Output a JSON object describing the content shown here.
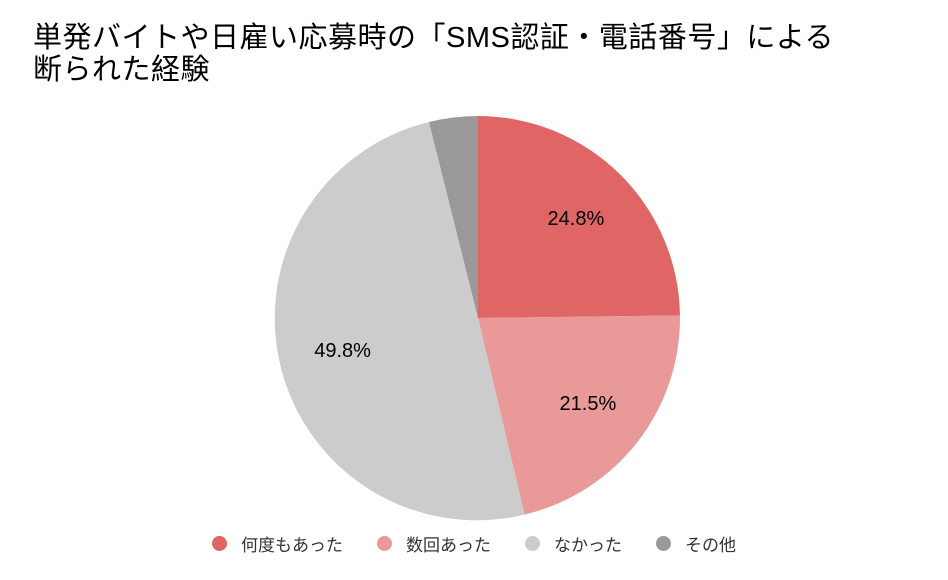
{
  "title_lines": [
    "単発バイトや日雇い応募時の「SMS認証・電話番号」による",
    "断られた経験"
  ],
  "chart_data": {
    "type": "pie",
    "title": "単発バイトや日雇い応募時の「SMS認証・電話番号」による断られた経験",
    "categories": [
      "何度もあった",
      "数回あった",
      "なかった",
      "その他"
    ],
    "values": [
      24.8,
      21.5,
      49.8,
      3.9
    ],
    "slice_labels": [
      "24.8%",
      "21.5%",
      "49.8%",
      ""
    ],
    "colors": [
      "#E06666",
      "#EA9999",
      "#CCCCCC",
      "#999999"
    ],
    "start_angle_deg": 0,
    "direction": "clockwise",
    "legend_position": "bottom",
    "label_color": "#000000",
    "background": "#FFFFFF"
  },
  "legend": {
    "items": [
      {
        "label": "何度もあった",
        "color": "#E06666"
      },
      {
        "label": "数回あった",
        "color": "#EA9999"
      },
      {
        "label": "なかった",
        "color": "#CCCCCC"
      },
      {
        "label": "その他",
        "color": "#999999"
      }
    ]
  }
}
